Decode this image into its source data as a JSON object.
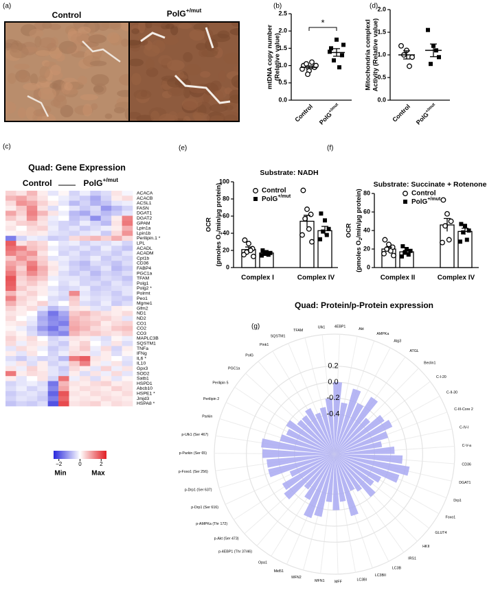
{
  "panel_labels": [
    "(a)",
    "(b)",
    "(c)",
    "(d)",
    "(e)",
    "(f)",
    "(g)"
  ],
  "micrographs": [
    "Control",
    "PolG+/mut"
  ],
  "chart_data": [
    {
      "type": "dotplot",
      "ylabel": [
        "mtDNA copy number",
        "(Relative value)"
      ],
      "categories": [
        "Control",
        "PolG+/mut"
      ],
      "points": [
        [
          1.0,
          0.85,
          0.95,
          1.05,
          1.1,
          0.9,
          1.0,
          0.75
        ],
        [
          1.5,
          1.75,
          1.3,
          1.15,
          0.95,
          1.4,
          1.6
        ]
      ],
      "means": [
        0.95,
        1.38
      ],
      "sems": [
        0.04,
        0.11
      ],
      "markers": [
        "circle",
        "square"
      ],
      "significance": "*",
      "ylim": [
        0,
        2.5
      ],
      "yticks": [
        {
          "value": 0,
          "label": "0.0"
        },
        0.5,
        {
          "value": 1,
          "label": "1.0"
        },
        1.5,
        {
          "value": 2,
          "label": "2.0"
        },
        2.5
      ]
    },
    {
      "type": "dotplot",
      "ylabel": [
        "Mitochondria complexI",
        "Activity (Relative value)"
      ],
      "categories": [
        "Control",
        "PolG+/mut"
      ],
      "points": [
        [
          1.2,
          1.1,
          0.95,
          1.0,
          0.75
        ],
        [
          1.55,
          1.2,
          0.95,
          0.8,
          1.1
        ]
      ],
      "means": [
        1.0,
        1.1
      ],
      "sems": [
        0.09,
        0.14
      ],
      "markers": [
        "circle",
        "square"
      ],
      "ylim": [
        0,
        2
      ],
      "yticks": [
        {
          "value": 0,
          "label": "0.0"
        },
        0.5,
        {
          "value": 1,
          "label": "1.0"
        },
        1.5,
        {
          "value": 2,
          "label": "2.0"
        }
      ]
    },
    {
      "type": "heatmap",
      "title": "Quad: Gene Expression",
      "column_groups": [
        "Control",
        "PolG+/mut"
      ],
      "rows": [
        "ACACA",
        "ACACB",
        "ACSL1",
        "FASN",
        "DGAT1",
        "DGAT2",
        "GPAM",
        "Lpin1a",
        "Lpin1b",
        "Perilipin.1 *",
        "LPL",
        "ACADL",
        "ACADM",
        "Cpt1b",
        "CD36",
        "FABP4",
        "PGC1a",
        "TFAM",
        "Polg1",
        "Polg2 *",
        "Polrmt",
        "Peo1",
        "Mgme1",
        "Gfm2",
        "ND1",
        "ND2",
        "CO1",
        "CO2",
        "CO3",
        "MAPLC3B",
        "SQSTM1",
        "TNFa",
        "IFNg",
        "IL6 *",
        "IL10",
        "Gpx3",
        "SOD2",
        "Satb1",
        "HSPD1",
        "Abcb10",
        "HSPE1 *",
        "Jmjd3",
        "HSPA8 *"
      ],
      "values": [
        [
          0.5,
          0.3,
          0.8,
          0.2,
          -0.3,
          0.1,
          -0.5,
          -0.2,
          -0.6,
          -0.4,
          0.3,
          -0.1
        ],
        [
          0.8,
          1.0,
          0.6,
          0.3,
          0.0,
          -0.2,
          -0.4,
          -0.6,
          -1.0,
          -0.5,
          0.2,
          0.4
        ],
        [
          0.4,
          1.2,
          1.0,
          0.5,
          0.2,
          -0.3,
          -0.8,
          -0.5,
          -0.9,
          -0.7,
          -0.3,
          -0.2
        ],
        [
          0.2,
          0.6,
          1.3,
          0.3,
          -0.4,
          0.0,
          -0.3,
          -0.6,
          -0.4,
          -1.2,
          -0.8,
          -0.5
        ],
        [
          1.0,
          0.5,
          1.4,
          0.8,
          0.3,
          -0.2,
          -0.8,
          -1.0,
          -0.5,
          -0.8,
          -0.6,
          -0.3
        ],
        [
          0.6,
          0.3,
          1.2,
          0.4,
          -0.2,
          0.0,
          -0.7,
          -0.5,
          -1.3,
          -0.6,
          0.2,
          1.4
        ],
        [
          0.2,
          0.5,
          0.6,
          0.3,
          -0.3,
          -0.5,
          -0.6,
          -0.2,
          -0.5,
          -0.8,
          0.3,
          1.5
        ],
        [
          0.3,
          0.0,
          0.4,
          0.5,
          -0.2,
          -0.5,
          -0.3,
          -0.6,
          -0.4,
          -0.2,
          0.2,
          0.9
        ],
        [
          0.1,
          0.2,
          0.3,
          0.2,
          -0.3,
          -0.4,
          -0.5,
          -0.3,
          -0.2,
          -0.6,
          0.4,
          1.2
        ],
        [
          -1.5,
          -0.5,
          -0.2,
          -0.3,
          -0.6,
          -0.5,
          0.4,
          0.6,
          0.8,
          0.5,
          0.9,
          0.4
        ],
        [
          1.8,
          0.3,
          0.6,
          0.4,
          0.0,
          -0.3,
          -0.2,
          -0.5,
          -0.3,
          -0.4,
          -0.2,
          -0.5
        ],
        [
          1.6,
          1.4,
          0.7,
          0.5,
          -0.2,
          -0.4,
          -0.5,
          -0.3,
          -0.6,
          -0.2,
          -0.5,
          -0.7
        ],
        [
          1.4,
          1.0,
          1.2,
          0.3,
          0.0,
          -0.5,
          -0.3,
          -0.6,
          -0.5,
          -0.4,
          -0.6,
          -0.3
        ],
        [
          0.6,
          1.2,
          0.8,
          0.5,
          -0.3,
          -0.2,
          -0.4,
          -0.5,
          -0.2,
          -0.6,
          -0.4,
          -0.5
        ],
        [
          1.0,
          0.8,
          1.4,
          0.6,
          0.2,
          -0.3,
          -0.6,
          -0.8,
          -0.4,
          -0.5,
          -0.7,
          -0.4
        ],
        [
          1.2,
          0.5,
          1.6,
          0.9,
          0.3,
          -0.2,
          -0.5,
          -0.7,
          -0.6,
          -0.3,
          -0.8,
          -0.6
        ],
        [
          1.5,
          0.7,
          1.3,
          0.8,
          0.2,
          -0.4,
          -0.6,
          -0.4,
          -0.8,
          -0.5,
          -0.6,
          -0.4
        ],
        [
          1.9,
          0.5,
          0.8,
          0.6,
          -0.2,
          -0.3,
          -0.3,
          -0.5,
          -0.6,
          -0.4,
          -0.5,
          -0.7
        ],
        [
          1.8,
          0.4,
          0.6,
          0.3,
          0.0,
          -0.4,
          -0.2,
          -0.5,
          -0.4,
          -0.6,
          -0.3,
          -0.5
        ],
        [
          1.7,
          0.6,
          0.3,
          0.2,
          -0.3,
          -0.5,
          -0.4,
          -0.2,
          -0.6,
          -0.5,
          -0.4,
          -0.3
        ],
        [
          0.8,
          0.3,
          0.5,
          0.2,
          -0.2,
          -0.4,
          1.3,
          -0.3,
          -0.5,
          -0.4,
          -0.6,
          -0.3
        ],
        [
          1.4,
          0.5,
          0.3,
          0.0,
          -0.4,
          -0.5,
          0.6,
          -0.2,
          -0.4,
          -0.3,
          -0.5,
          -0.6
        ],
        [
          0.9,
          0.4,
          0.2,
          0.5,
          -0.3,
          0.0,
          0.5,
          -0.4,
          -0.5,
          -0.2,
          -0.6,
          -0.4
        ],
        [
          0.5,
          0.2,
          0.4,
          -0.3,
          -0.8,
          -0.5,
          0.3,
          0.2,
          -0.3,
          -0.4,
          0.2,
          0.1
        ],
        [
          0.3,
          0.2,
          0.0,
          -0.8,
          -1.6,
          -1.0,
          0.6,
          0.8,
          0.5,
          0.3,
          0.2,
          0.4
        ],
        [
          0.4,
          0.0,
          -0.2,
          -1.0,
          -1.4,
          -1.2,
          0.8,
          0.6,
          0.4,
          0.5,
          0.3,
          -0.3
        ],
        [
          0.2,
          0.3,
          -0.3,
          -0.9,
          -1.3,
          -1.5,
          0.9,
          0.7,
          0.6,
          0.2,
          0.4,
          0.5
        ],
        [
          0.1,
          -0.2,
          -0.5,
          -1.2,
          -1.6,
          -1.0,
          1.0,
          0.8,
          0.4,
          0.3,
          0.6,
          0.7
        ],
        [
          0.3,
          0.1,
          -0.4,
          -0.8,
          -1.2,
          -1.4,
          0.8,
          0.5,
          0.6,
          0.4,
          0.3,
          0.5
        ],
        [
          0.5,
          0.2,
          0.4,
          0.0,
          -0.5,
          -0.3,
          0.3,
          0.2,
          -0.2,
          -0.4,
          0.1,
          -0.2
        ],
        [
          0.4,
          -0.2,
          0.3,
          0.2,
          -0.4,
          -0.6,
          0.2,
          0.5,
          0.0,
          -0.3,
          0.3,
          -0.4
        ],
        [
          -0.3,
          0.4,
          0.2,
          -0.2,
          -0.6,
          -0.4,
          0.3,
          0.6,
          -0.2,
          0.4,
          -0.5,
          0.2
        ],
        [
          0.2,
          -0.3,
          0.3,
          0.0,
          -0.5,
          -0.2,
          0.4,
          0.3,
          -0.3,
          0.2,
          -0.4,
          0.1
        ],
        [
          -0.4,
          -0.6,
          -0.3,
          -0.5,
          -0.4,
          -0.8,
          1.5,
          1.8,
          0.3,
          0.2,
          0.0,
          -0.3
        ],
        [
          -0.2,
          0.3,
          -0.4,
          0.2,
          -0.5,
          -0.3,
          0.6,
          1.4,
          0.2,
          -0.2,
          0.3,
          -0.4
        ],
        [
          0.3,
          -0.2,
          0.5,
          0.2,
          -0.3,
          -0.6,
          0.4,
          0.2,
          -0.3,
          0.5,
          -0.2,
          0.3
        ],
        [
          1.5,
          0.2,
          0.4,
          0.3,
          -0.3,
          -0.5,
          0.2,
          -0.4,
          0.3,
          -0.2,
          0.4,
          -0.3
        ],
        [
          0.2,
          -0.3,
          0.0,
          0.3,
          -0.5,
          1.6,
          -0.2,
          0.3,
          -0.4,
          0.2,
          -0.3,
          0.1
        ],
        [
          -0.5,
          -0.3,
          -0.2,
          -0.4,
          -1.6,
          0.8,
          0.3,
          0.2,
          0.4,
          0.5,
          0.2,
          0.3
        ],
        [
          -0.4,
          -0.2,
          -0.5,
          -0.3,
          -1.4,
          1.0,
          0.2,
          0.4,
          0.3,
          0.2,
          0.5,
          0.3
        ],
        [
          -0.6,
          -0.4,
          -0.3,
          -0.5,
          -1.8,
          1.9,
          0.3,
          0.2,
          0.4,
          0.3,
          0.2,
          0.4
        ],
        [
          -0.5,
          -0.3,
          -0.4,
          -0.6,
          -1.5,
          1.7,
          0.2,
          0.3,
          0.2,
          0.4,
          0.3,
          0.2
        ],
        [
          -0.7,
          -0.5,
          -0.6,
          -0.4,
          -2.0,
          2.0,
          0.3,
          0.4,
          0.5,
          0.2,
          0.4,
          0.3
        ]
      ],
      "clim": [
        -2.5,
        2.5
      ],
      "colormap": [
        "#2828dc",
        "#ffffff",
        "#e11e23"
      ],
      "colorbar_ticks": [
        {
          "value": -2,
          "label": "−2"
        },
        0,
        2
      ],
      "colorbar_labels": [
        "Min",
        "Max"
      ]
    },
    {
      "type": "bar_dot",
      "title": "Substrate: NADH",
      "ylabel": [
        "OCR",
        "(pmoles O2/min/µg protein)"
      ],
      "categories": [
        "Complex I",
        "Complex IV"
      ],
      "series": [
        {
          "name": "Control",
          "marker": "circle",
          "means": [
            21,
            54
          ],
          "sems": [
            3,
            7
          ],
          "points": [
            [
              32,
              28,
              22,
              18,
              20,
              15,
              13
            ],
            [
              90,
              68,
              62,
              57,
              45,
              38,
              30
            ]
          ]
        },
        {
          "name": "PolG+/mut",
          "marker": "square",
          "means": [
            17,
            43
          ],
          "sems": [
            1.5,
            5
          ],
          "points": [
            [
              20,
              18,
              17,
              16,
              15,
              14
            ],
            [
              63,
              55,
              45,
              42,
              38,
              33
            ]
          ]
        }
      ],
      "ylim": [
        0,
        100
      ],
      "yticks": [
        0,
        20,
        40,
        60,
        80,
        100
      ]
    },
    {
      "type": "bar_dot",
      "title": "Substrate: Succinate + Rotenone",
      "ylabel": [
        "OCR",
        "(pmoles O2/min/µg protein)"
      ],
      "categories": [
        "Complex II",
        "Complex IV"
      ],
      "series": [
        {
          "name": "Control",
          "marker": "circle",
          "means": [
            20,
            46
          ],
          "sems": [
            2,
            7
          ],
          "points": [
            [
              30,
              25,
              22,
              20,
              18,
              15,
              13
            ],
            [
              73,
              58,
              50,
              45,
              30,
              27
            ]
          ]
        },
        {
          "name": "PolG+/mut",
          "marker": "square",
          "means": [
            17,
            39
          ],
          "sems": [
            1.5,
            3.5
          ],
          "points": [
            [
              23,
              20,
              18,
              16,
              14,
              12
            ],
            [
              47,
              45,
              40,
              38,
              30,
              28
            ]
          ]
        }
      ],
      "ylim": [
        0,
        80
      ],
      "yticks": [
        0,
        20,
        40,
        60,
        80
      ]
    },
    {
      "type": "radial_bar",
      "title": "Quad: Protein/p-Protein expression",
      "categories": [
        "4EBP1",
        "Akt",
        "AMPKa",
        "Atg3",
        "ATGL",
        "Beclin1",
        "C-I-20",
        "C-II-30",
        "C-III-Core 2",
        "C-IV-I",
        "C-V-a",
        "CD36",
        "DGAT1",
        "Drp1",
        "Foxo1",
        "GLUT4",
        "HKII",
        "IRS1",
        "LC3B",
        "LC3BII",
        "LC3BI",
        "MFF",
        "MFN1",
        "MFN2",
        "Mid51",
        "Opa1",
        "p-4EBP1 (Thr 37/46)",
        "p-Akt (Ser 473)",
        "p-AMPKa (Thr 172)",
        "p-Drp1 (Ser 616)",
        "p-Drp1 (Ser 637)",
        "p-Foxo1 (Ser 256)",
        "p-Parkin (Ser 65)",
        "p-Ulk1 (Ser 467)",
        "Parkin",
        "Perilipin 2",
        "Perilipin 5",
        "PGC1a",
        "PolG",
        "Pink1",
        "SQSTM1",
        "TFAM",
        "Ulk1"
      ],
      "values": [
        0.0,
        -0.25,
        -0.05,
        -0.2,
        -0.05,
        -0.3,
        -0.15,
        -0.1,
        -0.2,
        -0.3,
        -0.15,
        -0.05,
        0.05,
        -0.05,
        -0.25,
        -0.3,
        -0.2,
        -0.35,
        -0.4,
        -0.1,
        -0.3,
        -0.2,
        -0.3,
        -0.1,
        -0.05,
        -0.25,
        -0.35,
        -0.1,
        -0.15,
        -0.3,
        -0.05,
        -0.05,
        0.0,
        0.02,
        -0.2,
        -0.25,
        -0.2,
        -0.3,
        -0.3,
        -0.25,
        -0.35,
        -0.3,
        -0.2
      ],
      "color": "#a9a9f2",
      "rlim": [
        -0.9,
        0.6
      ],
      "rticks": [
        0.2,
        {
          "value": 0,
          "label": "0.0"
        },
        -0.2,
        -0.4
      ]
    }
  ]
}
